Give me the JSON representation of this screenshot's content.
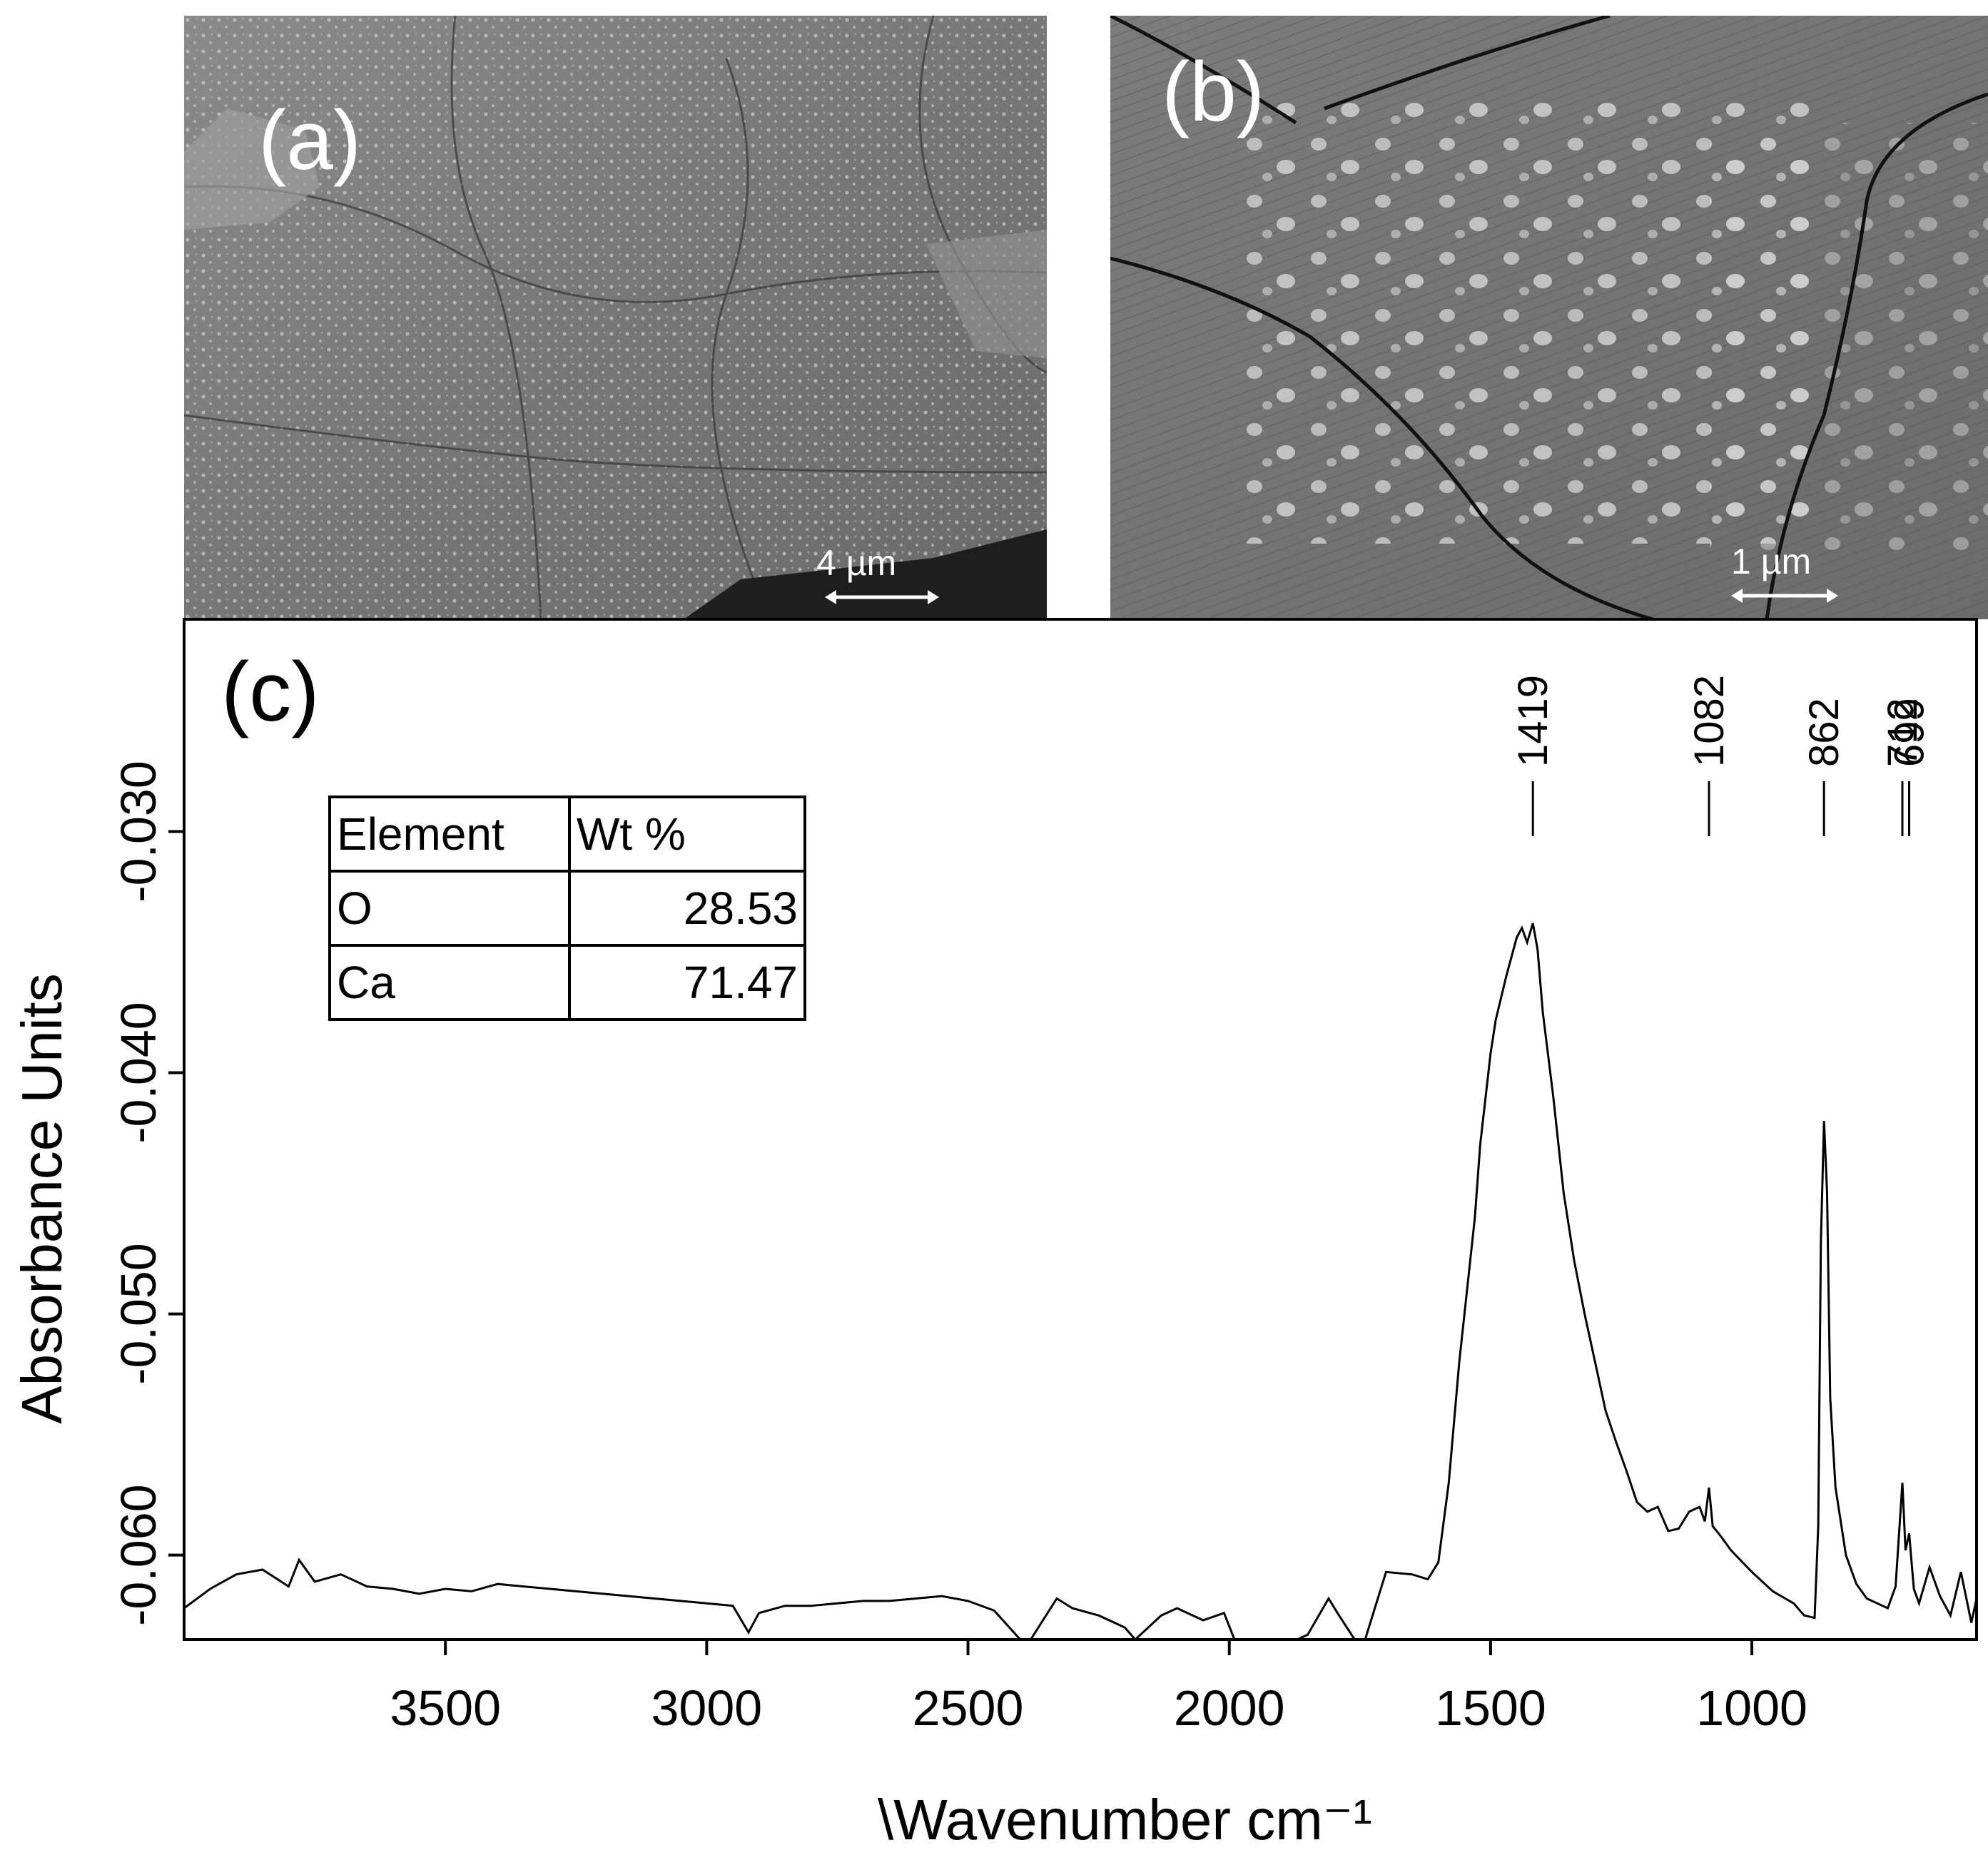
{
  "panels": {
    "a": {
      "label": "(a)",
      "scale_bar": "4 µm"
    },
    "b": {
      "label": "(b)",
      "scale_bar": "1 µm"
    },
    "c": {
      "label": "(c)"
    }
  },
  "eds_table": {
    "headers": [
      "Element",
      "Wt %"
    ],
    "rows": [
      {
        "element": "O",
        "wt": "28.53"
      },
      {
        "element": "Ca",
        "wt": "71.47"
      }
    ]
  },
  "chart_data": {
    "type": "line",
    "xlabel": "\\Wavenumber cm⁻¹",
    "ylabel": "Absorbance Units",
    "x_reversed": true,
    "xlim": [
      4000,
      570
    ],
    "ylim": [
      -0.0635,
      -0.0212
    ],
    "x_ticks": [
      3500,
      3000,
      2500,
      2000,
      1500,
      1000
    ],
    "x_tick_labels": [
      "3500",
      "3000",
      "2500",
      "2000",
      "1500",
      "1000"
    ],
    "y_ticks": [
      -0.06,
      -0.05,
      -0.04,
      -0.03
    ],
    "y_tick_labels": [
      "-0.060",
      "-0.050",
      "-0.040",
      "-0.030"
    ],
    "peak_annotations": [
      {
        "x": 1419,
        "label": "1419"
      },
      {
        "x": 1082,
        "label": "1082"
      },
      {
        "x": 862,
        "label": "862"
      },
      {
        "x": 712,
        "label": "712"
      },
      {
        "x": 699,
        "label": "699"
      }
    ],
    "series": [
      {
        "x": [
          4000,
          3950,
          3900,
          3850,
          3800,
          3780,
          3750,
          3700,
          3650,
          3600,
          3550,
          3500,
          3450,
          3400,
          3350,
          3300,
          3250,
          3200,
          3150,
          3100,
          3050,
          3000,
          2950,
          2920,
          2900,
          2850,
          2800,
          2750,
          2700,
          2650,
          2600,
          2550,
          2500,
          2450,
          2400,
          2380,
          2330,
          2300,
          2250,
          2200,
          2180,
          2130,
          2100,
          2050,
          2010,
          1990,
          1950,
          1900,
          1870,
          1850,
          1810,
          1790,
          1760,
          1740,
          1700,
          1650,
          1620,
          1600,
          1580,
          1560,
          1550,
          1530,
          1520,
          1500,
          1490,
          1470,
          1450,
          1440,
          1430,
          1419,
          1410,
          1400,
          1380,
          1360,
          1340,
          1320,
          1300,
          1280,
          1260,
          1240,
          1220,
          1200,
          1180,
          1160,
          1140,
          1120,
          1100,
          1090,
          1082,
          1075,
          1060,
          1040,
          1000,
          960,
          920,
          900,
          880,
          873,
          868,
          862,
          856,
          850,
          840,
          820,
          800,
          780,
          760,
          740,
          725,
          718,
          712,
          706,
          699,
          690,
          680,
          660,
          640,
          620,
          600,
          580,
          570
        ],
        "y": [
          -0.0622,
          -0.0614,
          -0.0608,
          -0.0606,
          -0.0613,
          -0.0602,
          -0.0611,
          -0.0608,
          -0.0613,
          -0.0614,
          -0.0616,
          -0.0614,
          -0.0615,
          -0.0612,
          -0.0613,
          -0.0614,
          -0.0615,
          -0.0616,
          -0.0617,
          -0.0618,
          -0.0619,
          -0.062,
          -0.0621,
          -0.0632,
          -0.0624,
          -0.0621,
          -0.0621,
          -0.062,
          -0.0619,
          -0.0619,
          -0.0618,
          -0.0617,
          -0.0619,
          -0.0623,
          -0.0645,
          -0.0645,
          -0.0618,
          -0.0622,
          -0.0625,
          -0.063,
          -0.0645,
          -0.0625,
          -0.0622,
          -0.0627,
          -0.0624,
          -0.0645,
          -0.0645,
          -0.064,
          -0.0637,
          -0.0633,
          -0.0618,
          -0.0625,
          -0.0645,
          -0.0645,
          -0.0607,
          -0.0608,
          -0.061,
          -0.0603,
          -0.057,
          -0.052,
          -0.05,
          -0.046,
          -0.043,
          -0.0392,
          -0.0378,
          -0.036,
          -0.0344,
          -0.034,
          -0.0346,
          -0.0338,
          -0.0349,
          -0.0375,
          -0.041,
          -0.045,
          -0.0478,
          -0.05,
          -0.052,
          -0.054,
          -0.0553,
          -0.0565,
          -0.0578,
          -0.0582,
          -0.058,
          -0.059,
          -0.0589,
          -0.0582,
          -0.058,
          -0.0586,
          -0.0572,
          -0.0588,
          -0.0592,
          -0.0598,
          -0.0607,
          -0.0615,
          -0.062,
          -0.0625,
          -0.0626,
          -0.0588,
          -0.047,
          -0.042,
          -0.045,
          -0.0535,
          -0.0572,
          -0.06,
          -0.0612,
          -0.0618,
          -0.062,
          -0.0622,
          -0.0613,
          -0.059,
          -0.057,
          -0.0598,
          -0.0591,
          -0.0614,
          -0.062,
          -0.0605,
          -0.0617,
          -0.0625,
          -0.0607,
          -0.0628,
          -0.0618
        ]
      }
    ]
  }
}
